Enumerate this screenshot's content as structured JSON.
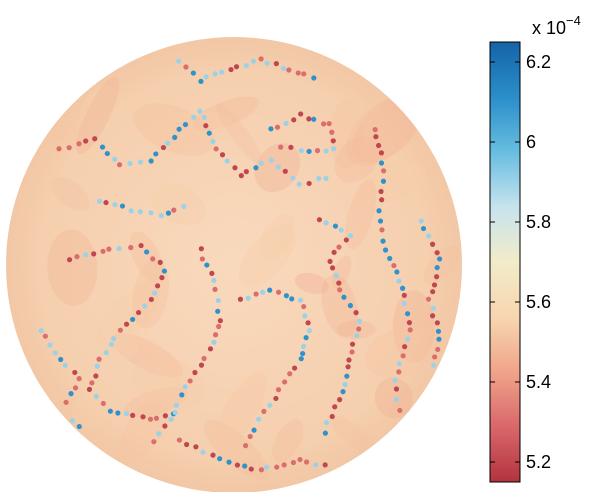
{
  "chart_data": {
    "type": "heatmap",
    "description_shape": "sphere",
    "colorbar": {
      "multiplier_base": "x 10",
      "multiplier_exponent": "−4",
      "range": [
        5.15,
        6.25
      ],
      "ticks": [
        {
          "value": 5.2,
          "label": "5.2"
        },
        {
          "value": 5.4,
          "label": "5.4"
        },
        {
          "value": 5.6,
          "label": "5.6"
        },
        {
          "value": 5.8,
          "label": "5.8"
        },
        {
          "value": 6.0,
          "label": "6"
        },
        {
          "value": 6.2,
          "label": "6.2"
        }
      ],
      "colormap": [
        "#b2333f",
        "#d9676a",
        "#f0a48a",
        "#f7d6b0",
        "#f2ecc9",
        "#c7e3ee",
        "#68bde0",
        "#2a8ec9",
        "#1663a7"
      ]
    },
    "background_value": 5.6,
    "defect_scar_values": [
      5.2,
      5.3,
      5.9,
      6.1
    ]
  }
}
